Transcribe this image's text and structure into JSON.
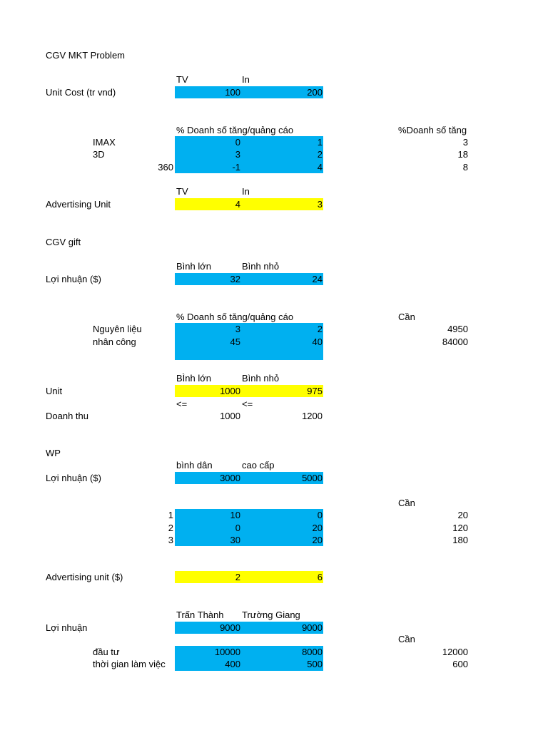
{
  "cgv_mkt": {
    "title": "CGV MKT Problem",
    "unit_cost": {
      "col_tv": "TV",
      "col_in": "In",
      "label": "Unit Cost  (tr vnd)",
      "tv": "100",
      "in": "200"
    },
    "effect": {
      "header": "% Doanh số tăng/quảng cáo",
      "right_header": "%Doanh số tăng",
      "rows": [
        {
          "label": "IMAX",
          "tv": "0",
          "in": "1",
          "right": "3"
        },
        {
          "label": "3D",
          "tv": "3",
          "in": "2",
          "right": "18"
        },
        {
          "label": "360",
          "tv": "-1",
          "in": "4",
          "right": "8"
        }
      ]
    },
    "advertising": {
      "col_tv": "TV",
      "col_in": "In",
      "label": "Advertising Unit",
      "tv": "4",
      "in": "3"
    }
  },
  "cgv_gift": {
    "title": "CGV gift",
    "profit": {
      "col_a": "Bình lớn",
      "col_b": "Bình nhỏ",
      "label": "Lợi nhuận ($)",
      "a": "32",
      "b": "24"
    },
    "resources": {
      "header": "% Doanh số tăng/quảng cáo",
      "need_header": "Cần",
      "rows": [
        {
          "label": "Nguyên liệu",
          "a": "3",
          "b": "2",
          "need": "4950"
        },
        {
          "label": "nhân công",
          "a": "45",
          "b": "40",
          "need": "84000"
        }
      ]
    },
    "unit": {
      "col_a": "BÌnh lớn",
      "col_b": "Bình nhỏ",
      "label": "Unit",
      "a": "1000",
      "b": "975"
    },
    "constraint": {
      "a": "<=",
      "b": "<="
    },
    "revenue": {
      "label": "Doanh thu",
      "a": "1000",
      "b": "1200"
    }
  },
  "wp": {
    "title": "WP",
    "profit": {
      "col_a": "bình dân",
      "col_b": "cao cấp",
      "label": "Lợi nhuận ($)",
      "a": "3000",
      "b": "5000"
    },
    "need_header": "Cần",
    "rows": [
      {
        "label": "1",
        "a": "10",
        "b": "0",
        "need": "20"
      },
      {
        "label": "2",
        "a": "0",
        "b": "20",
        "need": "120"
      },
      {
        "label": "3",
        "a": "30",
        "b": "20",
        "need": "180"
      }
    ],
    "advertising": {
      "label": "Advertising unit ($)",
      "a": "2",
      "b": "6"
    }
  },
  "artists": {
    "col_a": "Trấn Thành",
    "col_b": "Trường Giang",
    "profit": {
      "label": "Lợi nhuận",
      "a": "9000",
      "b": "9000"
    },
    "need_header": "Cần",
    "rows": [
      {
        "label": "đầu tư",
        "a": "10000",
        "b": "8000",
        "need": "12000"
      },
      {
        "label": "thời gian làm việc",
        "a": "400",
        "b": "500",
        "need": "600"
      }
    ]
  },
  "colors": {
    "input_fill": "#00b0f0",
    "decision_fill": "#ffff00"
  }
}
